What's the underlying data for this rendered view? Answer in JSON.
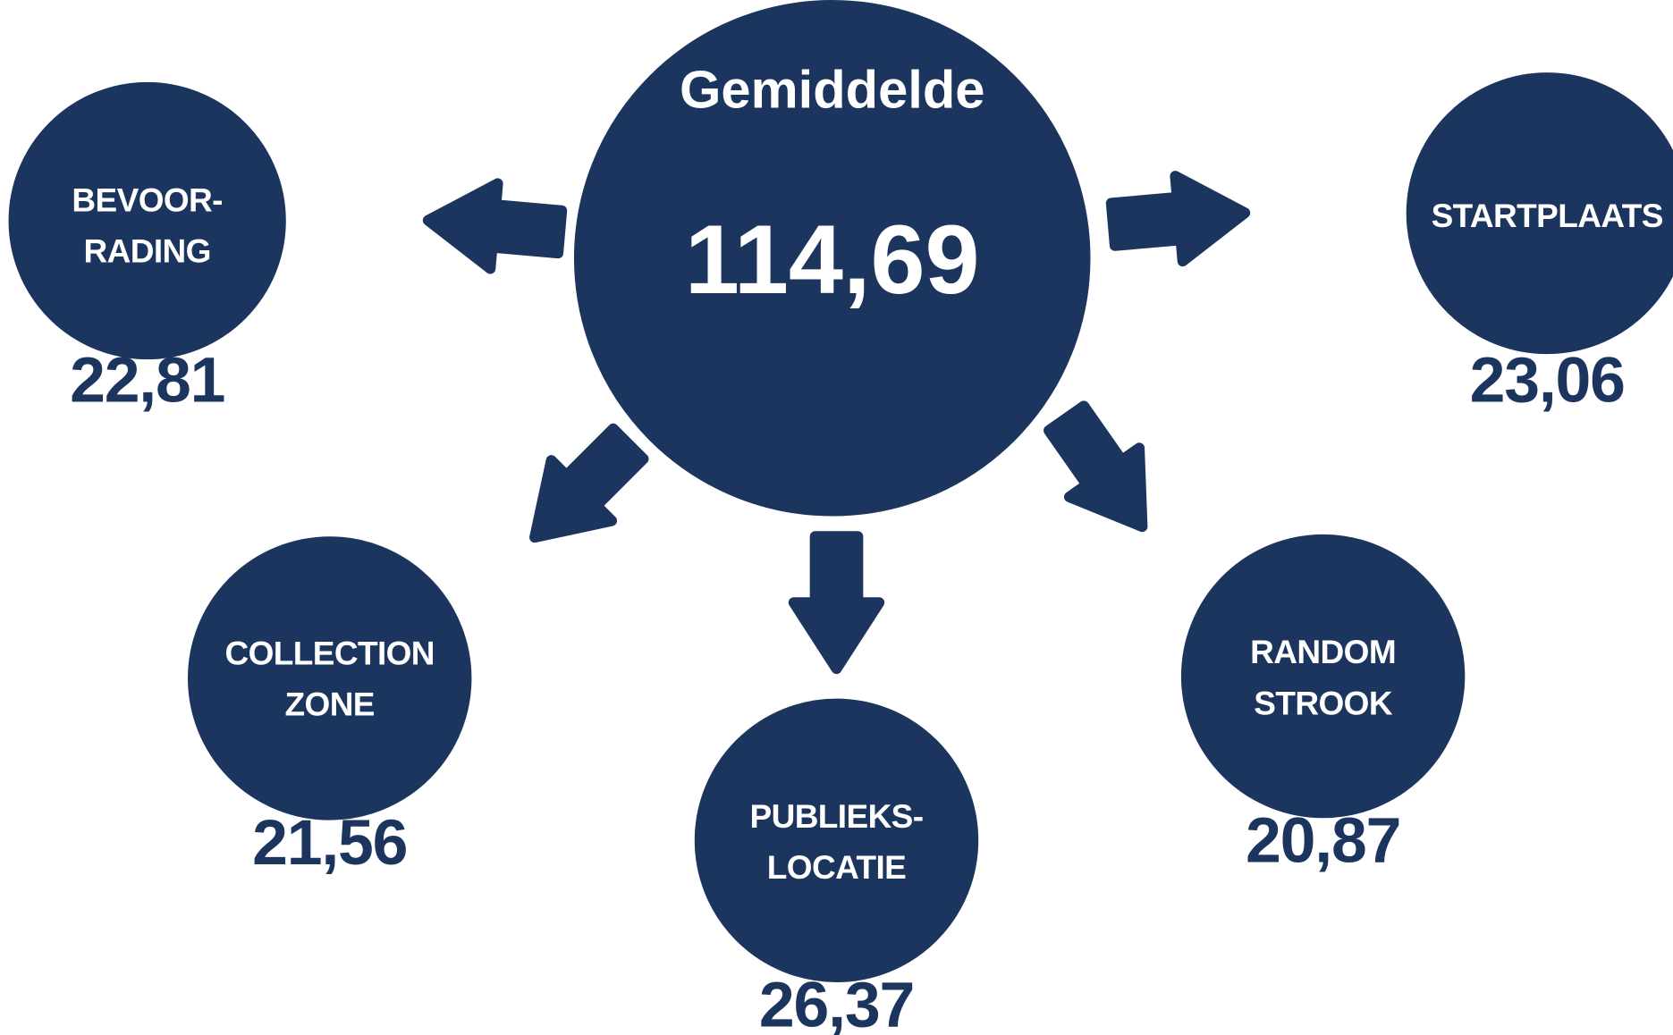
{
  "center": {
    "label": "Gemiddelde",
    "value": "114,69"
  },
  "nodes": [
    {
      "label": "BEVOOR-\nRADING",
      "value": "22,81"
    },
    {
      "label": "STARTPLAATS",
      "value": "23,06"
    },
    {
      "label": "COLLECTION\nZONE",
      "value": "21,56"
    },
    {
      "label": "PUBLIEKS-\nLOCATIE",
      "value": "26,37"
    },
    {
      "label": "RANDOM\nSTROOK",
      "value": "20,87"
    }
  ]
}
